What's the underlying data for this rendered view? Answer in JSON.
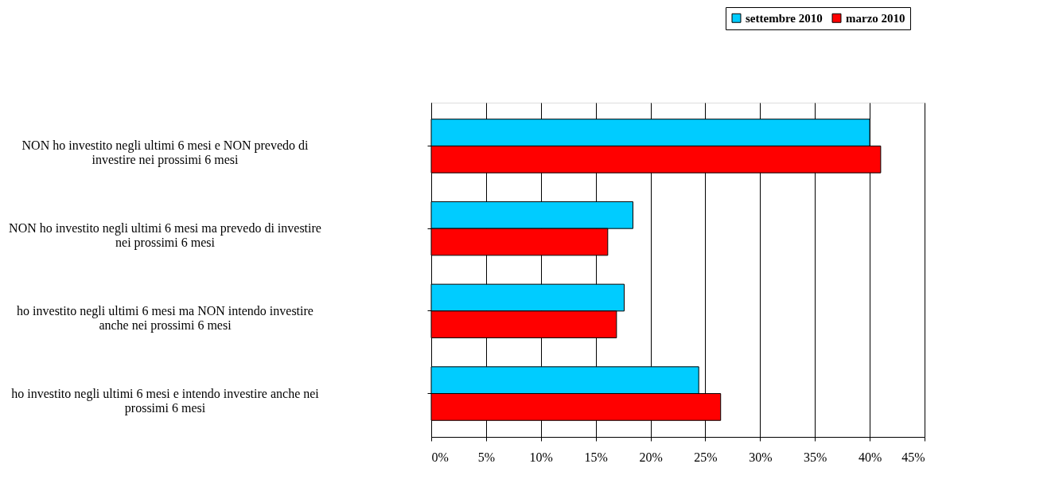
{
  "chart_data": {
    "type": "bar",
    "orientation": "horizontal",
    "categories": [
      "NON ho investito negli ultimi 6 mesi e NON prevedo di investire nei prossimi 6 mesi",
      "NON ho investito negli ultimi 6 mesi ma prevedo di investire nei prossimi 6 mesi",
      "ho investito negli ultimi 6 mesi ma NON intendo investire anche nei prossimi 6 mesi",
      "ho investito negli ultimi 6 mesi e intendo investire anche nei prossimi 6 mesi"
    ],
    "series": [
      {
        "name": "settembre 2010",
        "color": "#00ccff",
        "values": [
          40,
          18.4,
          17.6,
          24.4
        ]
      },
      {
        "name": "marzo 2010",
        "color": "#ff0000",
        "values": [
          41,
          16.1,
          16.9,
          26.4
        ]
      }
    ],
    "xlim": [
      0,
      45
    ],
    "xticks": [
      {
        "value": 0,
        "label": "0%"
      },
      {
        "value": 5,
        "label": "5%"
      },
      {
        "value": 10,
        "label": "10%"
      },
      {
        "value": 15,
        "label": "15%"
      },
      {
        "value": 20,
        "label": "20%"
      },
      {
        "value": 25,
        "label": "25%"
      },
      {
        "value": 30,
        "label": "30%"
      },
      {
        "value": 35,
        "label": "35%"
      },
      {
        "value": 40,
        "label": "40%"
      },
      {
        "value": 45,
        "label": "45%"
      }
    ],
    "grid": "x",
    "legend": "top right"
  }
}
